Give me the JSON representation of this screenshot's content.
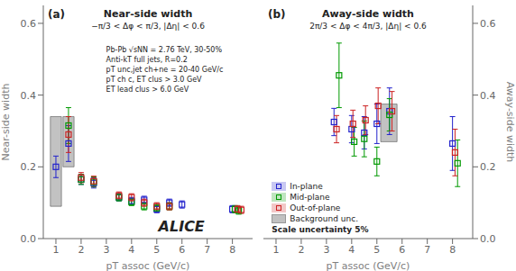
{
  "chart_data": [
    {
      "type": "scatter",
      "title": "Near-side width",
      "subtitle": "−π/3 < Δφ < π/3, |Δη| < 0.6",
      "x_label": "pT assoc (GeV/c)",
      "y_label": "Near-side width",
      "xlim": [
        0.5,
        8.8
      ],
      "ylim": [
        0.0,
        0.65
      ],
      "xticks": [
        1,
        2,
        3,
        4,
        5,
        6,
        7,
        8
      ],
      "yticks": [
        {
          "value": 0.0,
          "label": "0.0"
        },
        0.2,
        0.4,
        0.6
      ],
      "grid": false,
      "series": [
        {
          "color": "#2222cc",
          "marker": "square",
          "x": [
            1.0,
            1.5,
            2.0,
            2.5,
            3.5,
            4.0,
            4.5,
            5.0,
            5.5,
            6.0,
            8.0
          ],
          "values": [
            0.2,
            0.265,
            0.165,
            0.155,
            0.115,
            0.105,
            0.108,
            0.082,
            0.1,
            0.095,
            0.082
          ],
          "errors": [
            0.03,
            0.05,
            0.014,
            0.014,
            0.01,
            0.01,
            0.01,
            0.01,
            0.01,
            0.01,
            0.01
          ]
        },
        {
          "color": "#009900",
          "marker": "square",
          "x": [
            1.5,
            2.0,
            2.5,
            3.5,
            4.0,
            4.5,
            5.0,
            5.5,
            8.1,
            8.25
          ],
          "values": [
            0.315,
            0.165,
            0.158,
            0.115,
            0.102,
            0.09,
            0.085,
            0.09,
            0.082,
            0.078
          ],
          "errors": [
            0.05,
            0.014,
            0.014,
            0.01,
            0.01,
            0.01,
            0.01,
            0.01,
            0.01,
            0.01
          ]
        },
        {
          "color": "#cc2222",
          "marker": "square",
          "x": [
            1.5,
            2.0,
            2.5,
            3.5,
            4.0,
            4.5,
            5.0,
            5.5,
            8.2,
            8.35
          ],
          "values": [
            0.29,
            0.17,
            0.16,
            0.12,
            0.115,
            0.1,
            0.09,
            0.09,
            0.082,
            0.08
          ],
          "errors": [
            0.05,
            0.014,
            0.014,
            0.01,
            0.01,
            0.01,
            0.01,
            0.01,
            0.01,
            0.01
          ]
        }
      ],
      "background_boxes": {
        "color": "#999999",
        "boxes": [
          {
            "x": 0.78,
            "y": 0.09,
            "width": 0.44,
            "height": 0.25
          },
          {
            "x": 1.28,
            "y": 0.2,
            "width": 0.44,
            "height": 0.14
          }
        ]
      },
      "annotations": [
        "(a)",
        "Pb-Pb √sNN = 2.76 TeV, 30-50%",
        "Anti-kT full jets, R=0.2",
        "pT unc,jet ch+ne = 20-40 GeV/c",
        "pT ch c, ET clus > 3.0 GeV",
        "ET lead clus > 6.0 GeV",
        "ALICE"
      ]
    },
    {
      "type": "scatter",
      "title": "Away-side width",
      "subtitle": "2π/3 < Δφ < 4π/3, |Δη| < 0.6",
      "x_label": "pT assoc (GeV/c)",
      "y_label": "Away-side width",
      "xlim": [
        0.5,
        8.8
      ],
      "ylim": [
        0.0,
        0.65
      ],
      "xticks": [
        1,
        2,
        3,
        4,
        5,
        6,
        7,
        8
      ],
      "yticks": [
        {
          "value": 0.0,
          "label": "0.0"
        },
        0.2,
        0.4,
        0.6
      ],
      "grid": false,
      "legend": "lower left",
      "series": [
        {
          "name": "In-plane",
          "color": "#2222cc",
          "marker": "square",
          "x": [
            3.3,
            4.0,
            4.5,
            5.0,
            5.5,
            8.0
          ],
          "values": [
            0.325,
            0.305,
            0.295,
            0.32,
            0.355,
            0.265
          ],
          "errors": [
            0.038,
            0.038,
            0.045,
            0.055,
            0.065,
            0.075
          ]
        },
        {
          "name": "Mid-plane",
          "color": "#009900",
          "marker": "square",
          "x": [
            3.5,
            4.1,
            4.5,
            5.0,
            5.5,
            8.2
          ],
          "values": [
            0.455,
            0.27,
            0.278,
            0.215,
            0.345,
            0.21
          ],
          "errors": [
            0.09,
            0.04,
            0.05,
            0.04,
            0.045,
            0.065
          ]
        },
        {
          "name": "Out-of-plane",
          "color": "#cc2222",
          "marker": "square",
          "x": [
            3.4,
            4.05,
            4.55,
            5.05,
            5.6,
            8.1
          ],
          "values": [
            0.305,
            0.32,
            0.33,
            0.37,
            0.355,
            0.24
          ],
          "errors": [
            0.038,
            0.038,
            0.04,
            0.05,
            0.055,
            0.065
          ]
        }
      ],
      "background_boxes": {
        "color": "#999999",
        "label": "Background unc.",
        "boxes": [
          {
            "x": 5.15,
            "y": 0.27,
            "width": 0.65,
            "height": 0.105
          }
        ]
      },
      "annotations": [
        "(b)",
        "Scale uncertainty 5%"
      ]
    }
  ]
}
